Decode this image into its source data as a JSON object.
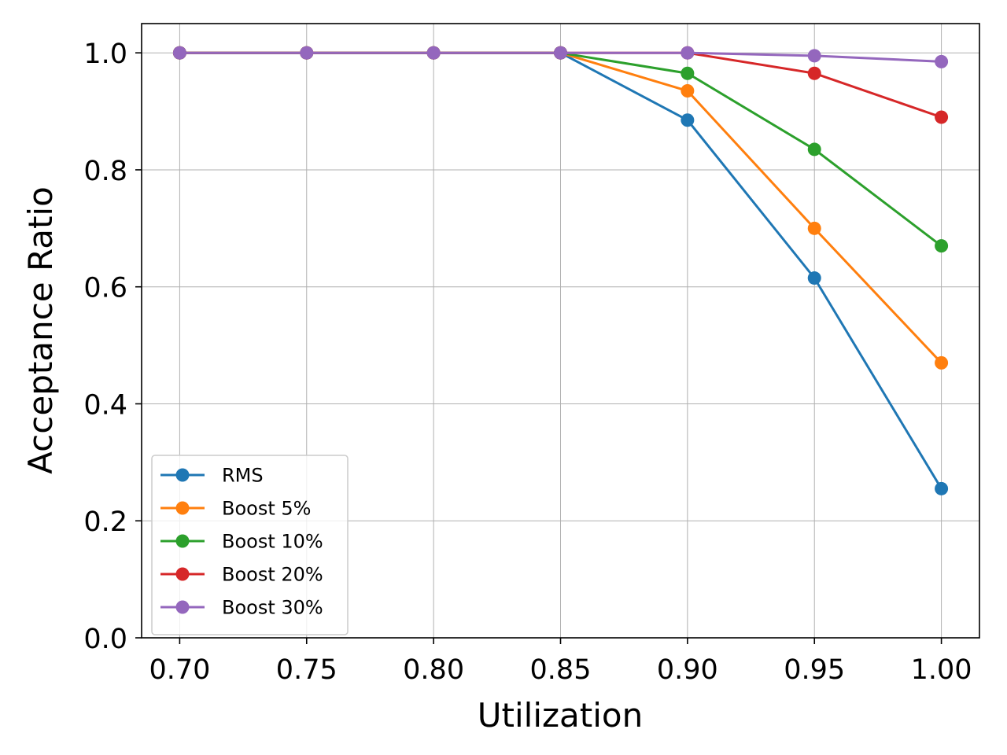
{
  "chart_data": {
    "type": "line",
    "title": "",
    "xlabel": "Utilization",
    "ylabel": "Acceptance Ratio",
    "x": [
      0.7,
      0.75,
      0.8,
      0.85,
      0.9,
      0.95,
      1.0
    ],
    "xlim": [
      0.685,
      1.015
    ],
    "ylim": [
      0.0,
      1.05
    ],
    "xticks": [
      "0.70",
      "0.75",
      "0.80",
      "0.85",
      "0.90",
      "0.95",
      "1.00"
    ],
    "yticks": [
      "0.0",
      "0.2",
      "0.4",
      "0.6",
      "0.8",
      "1.0"
    ],
    "grid": true,
    "legend_position": "lower-left",
    "series": [
      {
        "name": "RMS",
        "color": "#1f77b4",
        "values": [
          1.0,
          1.0,
          1.0,
          1.0,
          0.885,
          0.615,
          0.255
        ]
      },
      {
        "name": "Boost 5%",
        "color": "#ff7f0e",
        "values": [
          1.0,
          1.0,
          1.0,
          1.0,
          0.935,
          0.7,
          0.47
        ]
      },
      {
        "name": "Boost 10%",
        "color": "#2ca02c",
        "values": [
          1.0,
          1.0,
          1.0,
          1.0,
          0.965,
          0.835,
          0.67
        ]
      },
      {
        "name": "Boost 20%",
        "color": "#d62728",
        "values": [
          1.0,
          1.0,
          1.0,
          1.0,
          1.0,
          0.965,
          0.89
        ]
      },
      {
        "name": "Boost 30%",
        "color": "#9467bd",
        "values": [
          1.0,
          1.0,
          1.0,
          1.0,
          1.0,
          0.995,
          0.985
        ]
      }
    ]
  }
}
